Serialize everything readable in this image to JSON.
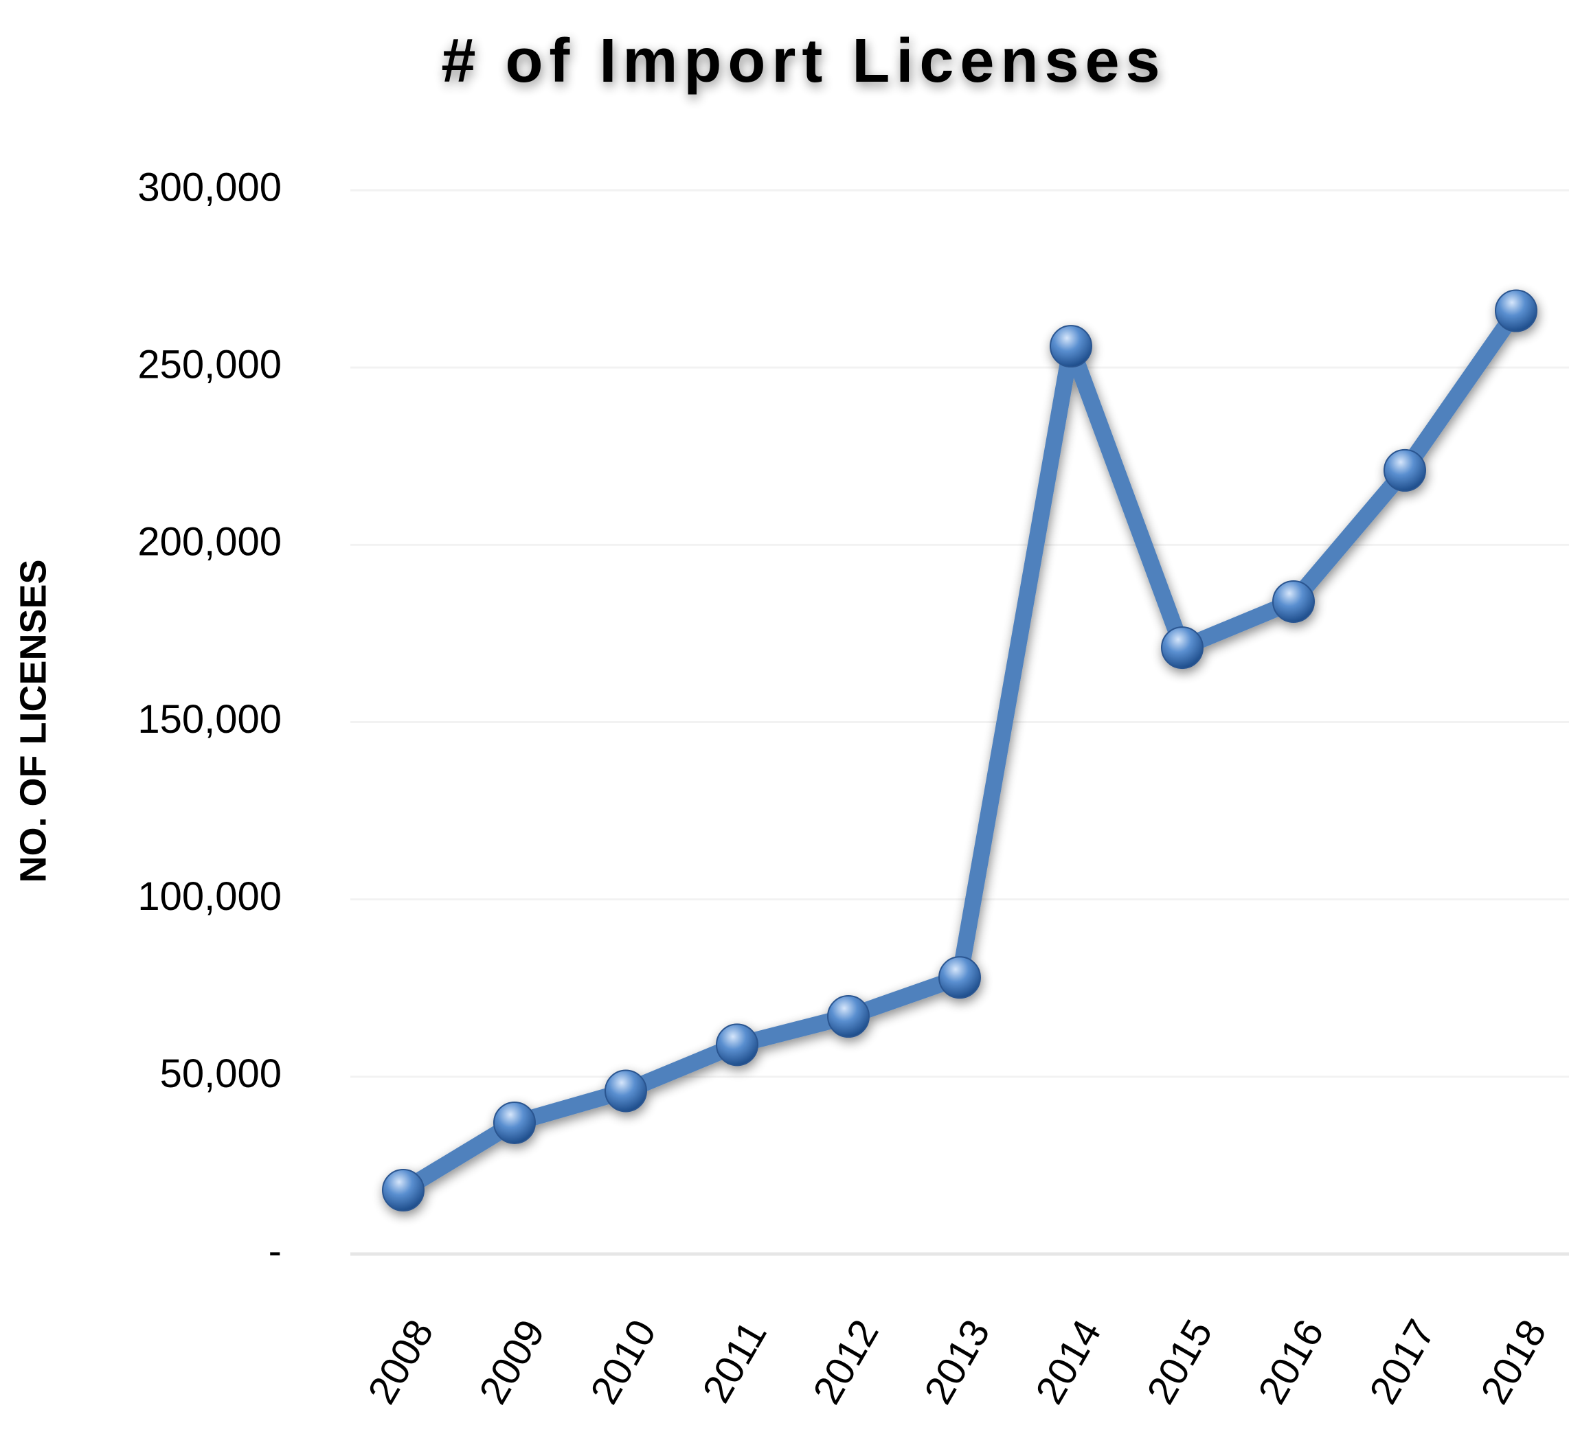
{
  "chart_data": {
    "type": "line",
    "title": "# of Import Licenses",
    "y_label": "NO. OF LICENSES",
    "categories": [
      "2008",
      "2009",
      "2010",
      "2011",
      "2012",
      "2013",
      "2014",
      "2015",
      "2016",
      "2017",
      "2018"
    ],
    "series": [
      {
        "name": "Import Licenses",
        "color": "#4f81bd",
        "values": [
          18000,
          37000,
          46000,
          59000,
          67000,
          78000,
          256000,
          171000,
          184000,
          221000,
          266000
        ]
      }
    ],
    "ylim": [
      0,
      300000
    ],
    "yticks": [
      {
        "value": 0,
        "label": "-"
      },
      {
        "value": 50000,
        "label": "50,000"
      },
      {
        "value": 100000,
        "label": "100,000"
      },
      {
        "value": 150000,
        "label": "150,000"
      },
      {
        "value": 200000,
        "label": "200,000"
      },
      {
        "value": 250000,
        "label": "250,000"
      },
      {
        "value": 300000,
        "label": "300,000"
      }
    ],
    "grid": true
  }
}
